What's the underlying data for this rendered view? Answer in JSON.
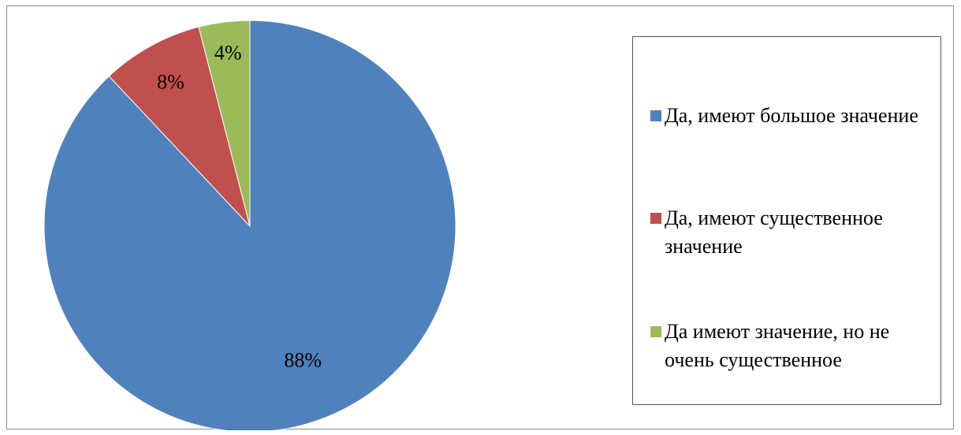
{
  "chart_data": {
    "type": "pie",
    "title": "",
    "start_angle_deg": 0,
    "direction": "clockwise",
    "slices": [
      {
        "label": "Да, имеют большое значение",
        "value": 88,
        "display": "88%",
        "color": "#4f81bd"
      },
      {
        "label": "Да, имеют существенное значение",
        "value": 8,
        "display": "8%",
        "color": "#c0504d"
      },
      {
        "label": "Да имеют значение, но не очень существенное",
        "value": 4,
        "display": "4%",
        "color": "#9bbb59"
      }
    ],
    "legend_position": "right"
  }
}
